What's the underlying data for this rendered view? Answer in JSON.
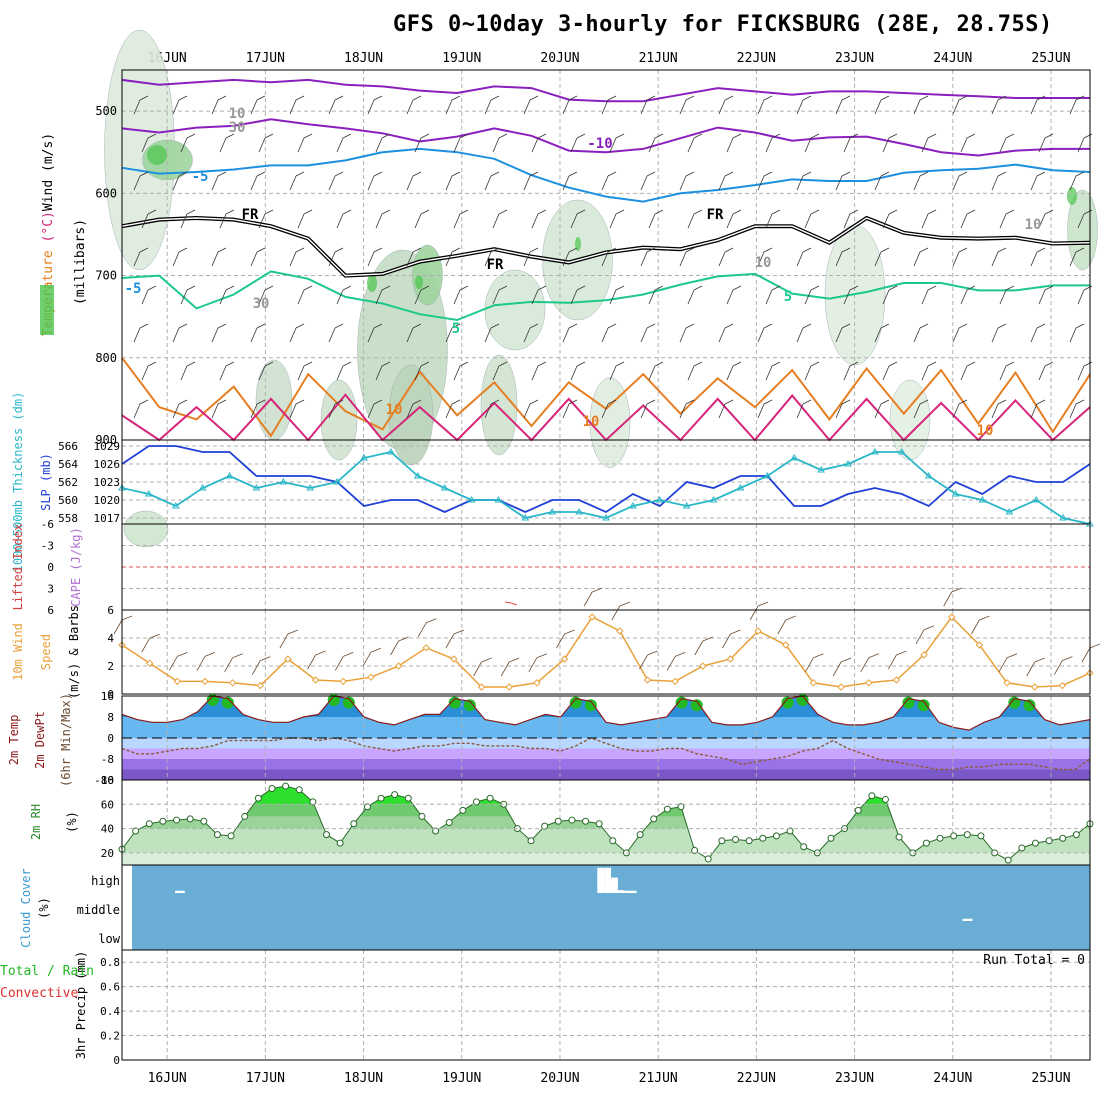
{
  "title": "GFS 0~10day 3-hourly for FICKSBURG (28E, 28.75S)",
  "dates": [
    "16JUN",
    "17JUN",
    "18JUN",
    "19JUN",
    "20JUN",
    "21JUN",
    "22JUN",
    "23JUN",
    "24JUN",
    "25JUN"
  ],
  "colors": {
    "rh_green": "#4bc44b",
    "rh_light": "#e6f2e6",
    "purple": "#8a1fbf",
    "blue": "#1e90e0",
    "teal": "#1cc88a",
    "orange": "#e67e22",
    "magenta": "#d6247a",
    "slp": "#1f3fd6",
    "thick": "#2ab7c8",
    "wind": "#e8a13a",
    "cloud": "#6aaed6",
    "grid": "#b0b0b0"
  },
  "chart_data": [
    {
      "type": "area",
      "name": "upper-air",
      "ylabel_parts": [
        "RH (%)",
        "Temperature",
        "(°C)",
        "Wind (m/s)"
      ],
      "ylabel2": "(millibars)",
      "ylim": [
        900,
        450
      ],
      "yticks": [
        500,
        600,
        700,
        800,
        900
      ],
      "contour_labels": [
        "-10",
        "-5",
        "-5",
        "FR",
        "FR",
        "FR",
        "5",
        "-5",
        "5",
        "10",
        "10",
        "10",
        "10",
        "30",
        "30",
        "10"
      ],
      "series": [
        {
          "name": "-10",
          "color": "purple",
          "values": [
            521,
            526,
            520,
            518,
            510,
            516,
            521,
            527,
            537,
            531,
            521,
            530,
            548,
            550,
            546,
            533,
            520,
            526,
            536,
            532,
            531,
            540,
            550,
            554,
            548,
            546,
            546
          ]
        },
        {
          "name": "-5",
          "color": "blue",
          "values": [
            569,
            576,
            574,
            571,
            566,
            566,
            560,
            550,
            546,
            550,
            558,
            578,
            593,
            604,
            610,
            600,
            596,
            590,
            583,
            585,
            585,
            575,
            572,
            570,
            565,
            572,
            574
          ]
        },
        {
          "name": "FR",
          "color": "black",
          "values": [
            640,
            632,
            630,
            632,
            640,
            655,
            700,
            698,
            683,
            676,
            668,
            677,
            684,
            672,
            666,
            668,
            657,
            640,
            640,
            660,
            630,
            648,
            654,
            655,
            654,
            661,
            660
          ]
        },
        {
          "name": "5",
          "color": "teal",
          "values": [
            703,
            700,
            740,
            723,
            695,
            704,
            726,
            734,
            747,
            754,
            736,
            732,
            733,
            730,
            723,
            711,
            701,
            698,
            722,
            728,
            720,
            709,
            709,
            718,
            718,
            712,
            712
          ]
        },
        {
          "name": "10",
          "color": "orange",
          "values": [
            800,
            860,
            875,
            835,
            895,
            820,
            865,
            887,
            817,
            870,
            830,
            883,
            830,
            862,
            820,
            868,
            825,
            860,
            815,
            875,
            813,
            868,
            815,
            880,
            818,
            890,
            820
          ]
        },
        {
          "name": "magenta",
          "color": "magenta",
          "values": [
            870,
            900,
            860,
            900,
            850,
            900,
            845,
            900,
            860,
            900,
            855,
            900,
            850,
            900,
            858,
            900,
            850,
            900,
            846,
            900,
            850,
            900,
            855,
            900,
            852,
            900,
            860
          ]
        }
      ]
    },
    {
      "type": "line",
      "name": "slp-thickness",
      "ylabel_left": "1000~500mb Thickness (dm)",
      "ylabel_right": "SLP (mb)",
      "left_ticks": [
        "566",
        "564",
        "562",
        "560",
        "558"
      ],
      "right_ticks": [
        "1029",
        "1026",
        "1023",
        "1020",
        "1017"
      ],
      "ylim": [
        1016,
        1030
      ],
      "series": [
        {
          "name": "SLP",
          "values": [
            1026,
            1029,
            1029,
            1028,
            1028,
            1024,
            1024,
            1024,
            1023,
            1019,
            1020,
            1020,
            1018,
            1020,
            1020,
            1018,
            1020,
            1020,
            1018,
            1021,
            1019,
            1023,
            1022,
            1024,
            1024,
            1019,
            1019,
            1021,
            1022,
            1021,
            1019,
            1023,
            1021,
            1024,
            1023,
            1023,
            1026
          ]
        },
        {
          "name": "Thickness",
          "values": [
            1022,
            1021,
            1019,
            1022,
            1024,
            1022,
            1023,
            1022,
            1023,
            1027,
            1028,
            1024,
            1022,
            1020,
            1020,
            1017,
            1018,
            1018,
            1017,
            1019,
            1020,
            1019,
            1020,
            1022,
            1024,
            1027,
            1025,
            1026,
            1028,
            1028,
            1024,
            1021,
            1020,
            1018,
            1020,
            1017,
            1016
          ]
        }
      ]
    },
    {
      "type": "line",
      "name": "cape-li",
      "ylabel_left": "Lifted Index",
      "ylabel_right": "CAPE (J/kg)",
      "yticks": [
        "-6",
        "-3",
        "0",
        "3",
        "6"
      ],
      "ylim": [
        -6,
        6
      ],
      "series": [
        {
          "name": "Lifted Index",
          "values": [
            0,
            0
          ]
        }
      ]
    },
    {
      "type": "line",
      "name": "wind10m",
      "ylabel": "10m Wind Speed & Barbs (m/s)",
      "ylabel_lines": [
        "10m Wind",
        "Speed",
        "(m/s) & Barbs"
      ],
      "yticks": [
        "6",
        "4",
        "2",
        "0"
      ],
      "ylim": [
        0,
        6
      ],
      "series": [
        {
          "name": "Speed",
          "values": [
            3.5,
            2.2,
            0.9,
            0.9,
            0.8,
            0.6,
            2.5,
            1.0,
            0.9,
            1.2,
            2.0,
            3.3,
            2.5,
            0.5,
            0.5,
            0.8,
            2.5,
            5.5,
            4.5,
            1.0,
            0.9,
            2.0,
            2.5,
            4.5,
            3.5,
            0.8,
            0.5,
            0.8,
            1.0,
            2.8,
            5.5,
            3.5,
            0.8,
            0.5,
            0.6,
            1.5
          ]
        }
      ]
    },
    {
      "type": "area",
      "name": "temp2m",
      "ylabel": "2m Temp 2m DewPt (6hr Min/Max)",
      "ylabel_lines": [
        "2m Temp",
        "2m DewPt",
        "(6hr Min/Max)"
      ],
      "yticks": [
        "16",
        "8",
        "0",
        "-8",
        "-16"
      ],
      "ylim": [
        -16,
        16
      ],
      "series": [
        {
          "name": "Temp",
          "values": [
            9,
            7,
            6,
            6,
            7,
            10,
            16,
            15,
            9,
            7,
            6,
            6,
            8,
            9,
            16,
            15,
            8,
            6,
            5,
            7,
            9,
            9,
            15,
            14,
            7,
            6,
            5,
            7,
            9,
            8,
            15,
            14,
            6,
            5,
            6,
            7,
            8,
            15,
            14,
            6,
            5,
            5,
            6,
            8,
            15,
            16,
            9,
            6,
            5,
            5,
            6,
            8,
            15,
            14,
            6,
            4,
            3,
            6,
            8,
            15,
            14,
            7,
            5,
            6,
            7
          ]
        },
        {
          "name": "DewPt",
          "values": [
            -4,
            -6,
            -6,
            -5,
            -4,
            -4,
            -3,
            -1,
            -1,
            -1,
            -1,
            0,
            0,
            -1,
            0,
            -1,
            -3,
            -4,
            -5,
            -4,
            -3,
            -3,
            -2,
            -2,
            -3,
            -3,
            -3,
            -4,
            -4,
            -5,
            -3,
            0,
            -2,
            -4,
            -5,
            -5,
            -4,
            -4,
            -6,
            -7,
            -8,
            -10,
            -9,
            -8,
            -7,
            -5,
            -4,
            -1,
            -4,
            -6,
            -8,
            -9,
            -10,
            -11,
            -12,
            -12,
            -11,
            -11,
            -10,
            -10,
            -10,
            -11,
            -12,
            -12,
            -8
          ]
        }
      ]
    },
    {
      "type": "area",
      "name": "rh2m",
      "ylabel": "2m RH (%)",
      "yticks": [
        "80",
        "60",
        "40",
        "20"
      ],
      "ylim": [
        10,
        80
      ],
      "series": [
        {
          "name": "RH",
          "values": [
            23,
            38,
            44,
            46,
            47,
            48,
            46,
            35,
            34,
            50,
            65,
            73,
            75,
            72,
            62,
            35,
            28,
            44,
            58,
            65,
            68,
            65,
            50,
            38,
            45,
            55,
            62,
            65,
            60,
            40,
            30,
            42,
            46,
            47,
            46,
            44,
            30,
            20,
            35,
            48,
            56,
            58,
            22,
            15,
            30,
            31,
            30,
            32,
            34,
            38,
            25,
            20,
            32,
            40,
            55,
            67,
            64,
            33,
            20,
            28,
            32,
            34,
            35,
            34,
            20,
            14,
            24,
            28,
            30,
            32,
            35,
            44
          ]
        }
      ]
    },
    {
      "type": "area",
      "name": "cloud",
      "ylabel": "Cloud Cover (%)",
      "yticks": [
        "high",
        "middle",
        "low"
      ],
      "series": [
        {
          "name": "high",
          "values": [
            0,
            0,
            0,
            0,
            0,
            0,
            0,
            0,
            0,
            0,
            0,
            0,
            0,
            0,
            0,
            0,
            0,
            0,
            0,
            0,
            0,
            0,
            0,
            0,
            0,
            0,
            0,
            0,
            0,
            0,
            0,
            0,
            0,
            0,
            0,
            0,
            0,
            0,
            0,
            0,
            0,
            0,
            0,
            0,
            0,
            0,
            0,
            0,
            0,
            0,
            0,
            0,
            0,
            0,
            0,
            0,
            0,
            0,
            0,
            0,
            0,
            0,
            0,
            0,
            0,
            0,
            0,
            0,
            0,
            0,
            0,
            0,
            0,
            0,
            0,
            0,
            0,
            0,
            0,
            0,
            0,
            0,
            0,
            0,
            0,
            0,
            0,
            0,
            0,
            0,
            0,
            0,
            0,
            0,
            0,
            0,
            0,
            0,
            0,
            0,
            0,
            0,
            0,
            0,
            0,
            0,
            0,
            0,
            0,
            0,
            0,
            0,
            0,
            0,
            0,
            0,
            0,
            0,
            0,
            0,
            0,
            0,
            0,
            0,
            0,
            0,
            0,
            0,
            0,
            0,
            0,
            0,
            0,
            0,
            0,
            0,
            0,
            0,
            0,
            0,
            0,
            0,
            0,
            0,
            0,
            0,
            0,
            0,
            0,
            0,
            0,
            0,
            0,
            0,
            0,
            0,
            0,
            0,
            0,
            0,
            0,
            0,
            0,
            0,
            0,
            0,
            0,
            0,
            0,
            0,
            0,
            0,
            0,
            0,
            0,
            0,
            0,
            0,
            0,
            0,
            0,
            0,
            0,
            0,
            0,
            0,
            0,
            0,
            0,
            0,
            0,
            0,
            0,
            0,
            0,
            0,
            0,
            0,
            0,
            0
          ]
        }
      ],
      "gaps": [
        {
          "layer": "high",
          "day_start": 16.08,
          "day_end": 16.18,
          "depth": 0.08
        },
        {
          "layer": "high",
          "day_start": 20.38,
          "day_end": 20.45,
          "depth": 0.9
        },
        {
          "layer": "high",
          "day_start": 20.45,
          "day_end": 20.52,
          "depth": 0.9
        },
        {
          "layer": "high",
          "day_start": 20.52,
          "day_end": 20.59,
          "depth": 0.55
        },
        {
          "layer": "high",
          "day_start": 20.59,
          "day_end": 20.66,
          "depth": 0.1
        },
        {
          "layer": "high",
          "day_start": 20.66,
          "day_end": 20.78,
          "depth": 0.08
        },
        {
          "layer": "middle",
          "day_start": 24.1,
          "day_end": 24.2,
          "depth": 0.08
        }
      ]
    },
    {
      "type": "bar",
      "name": "precip",
      "ylabel": "3hr Precip (mm)",
      "legend_lines": [
        "Total / Rain",
        "Convective"
      ],
      "annotation": "Run Total = 0",
      "yticks": [
        "0.8",
        "0.6",
        "0.4",
        "0.2",
        "0"
      ],
      "ylim": [
        0,
        0.9
      ],
      "values": []
    }
  ]
}
